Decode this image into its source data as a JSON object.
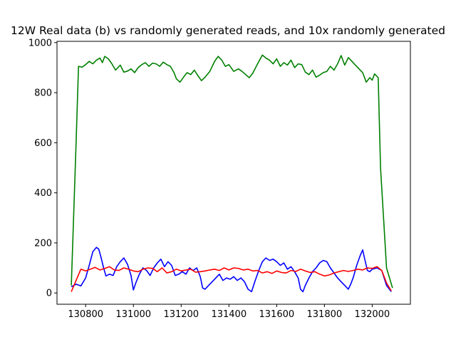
{
  "chart_data": {
    "type": "line",
    "title": "12W Real data (b) vs randomly generated reads, and 10x randomly generated",
    "xlabel": "",
    "ylabel": "",
    "xlim": [
      130680,
      132160
    ],
    "ylim": [
      -45,
      1005
    ],
    "xticks": [
      130800,
      131000,
      131200,
      131400,
      131600,
      131800,
      132000
    ],
    "yticks": [
      0,
      200,
      400,
      600,
      800,
      1000
    ],
    "grid": false,
    "series": [
      {
        "color": "#008000",
        "x": [
          130740,
          130760,
          130770,
          130785,
          130800,
          130815,
          130830,
          130845,
          130860,
          130870,
          130880,
          130895,
          130910,
          130925,
          130945,
          130960,
          130975,
          130990,
          131005,
          131020,
          131035,
          131050,
          131065,
          131080,
          131095,
          131110,
          131125,
          131140,
          131155,
          131170,
          131180,
          131195,
          131210,
          131225,
          131240,
          131255,
          131270,
          131285,
          131300,
          131320,
          131340,
          131355,
          131370,
          131385,
          131400,
          131420,
          131440,
          131455,
          131470,
          131485,
          131500,
          131520,
          131540,
          131555,
          131570,
          131585,
          131600,
          131615,
          131630,
          131645,
          131660,
          131675,
          131690,
          131705,
          131720,
          131735,
          131750,
          131765,
          131780,
          131795,
          131810,
          131825,
          131840,
          131855,
          131870,
          131885,
          131900,
          131915,
          131930,
          131945,
          131960,
          131975,
          131990,
          132000,
          132010,
          132025,
          132035,
          132060,
          132085
        ],
        "y": [
          30,
          600,
          905,
          902,
          912,
          925,
          915,
          930,
          938,
          920,
          945,
          935,
          915,
          890,
          910,
          882,
          886,
          895,
          880,
          900,
          912,
          920,
          905,
          918,
          915,
          905,
          922,
          912,
          905,
          880,
          855,
          842,
          862,
          880,
          872,
          890,
          868,
          848,
          862,
          885,
          925,
          945,
          930,
          905,
          912,
          885,
          895,
          885,
          872,
          860,
          878,
          915,
          950,
          938,
          930,
          915,
          935,
          905,
          920,
          910,
          930,
          900,
          915,
          912,
          882,
          872,
          890,
          862,
          870,
          880,
          885,
          905,
          890,
          915,
          948,
          910,
          940,
          925,
          910,
          895,
          880,
          842,
          860,
          850,
          875,
          860,
          500,
          100,
          20
        ]
      },
      {
        "color": "#0000ff",
        "x": [
          130740,
          130760,
          130780,
          130800,
          130815,
          130830,
          130845,
          130855,
          130865,
          130875,
          130885,
          130900,
          130915,
          130930,
          130945,
          130960,
          130975,
          130990,
          131000,
          131010,
          131025,
          131040,
          131055,
          131070,
          131085,
          131100,
          131115,
          131130,
          131145,
          131160,
          131175,
          131190,
          131205,
          131220,
          131235,
          131250,
          131265,
          131280,
          131290,
          131300,
          131315,
          131330,
          131345,
          131360,
          131375,
          131390,
          131405,
          131420,
          131435,
          131450,
          131465,
          131480,
          131495,
          131510,
          131525,
          131540,
          131555,
          131570,
          131585,
          131600,
          131615,
          131630,
          131645,
          131660,
          131675,
          131690,
          131700,
          131710,
          131720,
          131735,
          131750,
          131765,
          131780,
          131795,
          131810,
          131825,
          131840,
          131855,
          131870,
          131885,
          131900,
          131910,
          131920,
          131935,
          131950,
          131960,
          131970,
          131980,
          131990,
          132000,
          132020,
          132040,
          132060,
          132080
        ],
        "y": [
          25,
          35,
          28,
          60,
          110,
          165,
          182,
          175,
          140,
          100,
          68,
          75,
          70,
          105,
          125,
          140,
          115,
          70,
          12,
          40,
          75,
          100,
          90,
          70,
          100,
          120,
          135,
          105,
          125,
          110,
          70,
          75,
          85,
          75,
          100,
          90,
          100,
          65,
          20,
          15,
          30,
          45,
          60,
          75,
          50,
          60,
          55,
          65,
          50,
          60,
          45,
          15,
          5,
          50,
          90,
          125,
          140,
          130,
          135,
          125,
          110,
          120,
          95,
          105,
          85,
          60,
          15,
          5,
          30,
          60,
          85,
          100,
          120,
          130,
          125,
          100,
          80,
          60,
          45,
          30,
          15,
          35,
          60,
          110,
          150,
          172,
          130,
          90,
          85,
          95,
          100,
          90,
          30,
          5
        ]
      },
      {
        "color": "#ff0000",
        "x": [
          130740,
          130760,
          130780,
          130800,
          130820,
          130840,
          130860,
          130880,
          130900,
          130920,
          130940,
          130960,
          130980,
          131000,
          131020,
          131040,
          131060,
          131080,
          131100,
          131120,
          131140,
          131160,
          131180,
          131200,
          131220,
          131240,
          131260,
          131280,
          131300,
          131320,
          131340,
          131360,
          131380,
          131400,
          131420,
          131440,
          131460,
          131480,
          131500,
          131520,
          131540,
          131560,
          131580,
          131600,
          131620,
          131640,
          131660,
          131680,
          131700,
          131720,
          131740,
          131760,
          131780,
          131800,
          131820,
          131840,
          131860,
          131880,
          131900,
          131920,
          131940,
          131960,
          131980,
          132000,
          132020,
          132040,
          132060,
          132080
        ],
        "y": [
          5,
          50,
          95,
          88,
          95,
          102,
          92,
          98,
          105,
          92,
          90,
          100,
          95,
          88,
          85,
          95,
          100,
          98,
          85,
          100,
          80,
          85,
          95,
          88,
          92,
          95,
          83,
          85,
          88,
          92,
          95,
          90,
          100,
          92,
          100,
          98,
          92,
          95,
          88,
          90,
          80,
          85,
          78,
          88,
          82,
          80,
          90,
          86,
          95,
          88,
          82,
          85,
          75,
          68,
          72,
          80,
          85,
          90,
          86,
          90,
          95,
          92,
          100,
          98,
          105,
          90,
          40,
          8
        ]
      }
    ]
  }
}
